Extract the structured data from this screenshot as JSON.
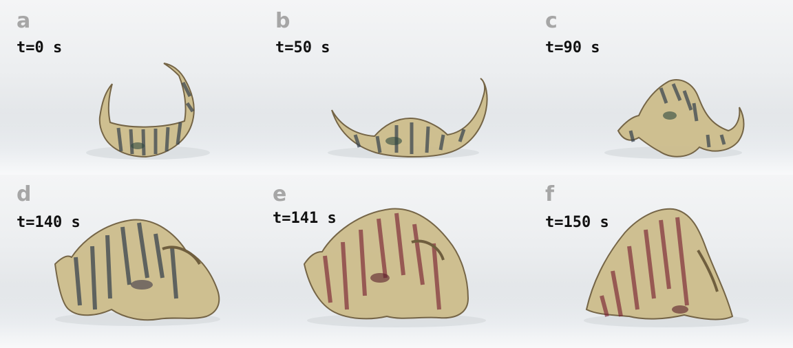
{
  "panels": [
    {
      "letter": "a",
      "time": "t=0 s"
    },
    {
      "letter": "b",
      "time": "t=50 s"
    },
    {
      "letter": "c",
      "time": "t=90 s"
    },
    {
      "letter": "d",
      "time": "t=140 s"
    },
    {
      "letter": "e",
      "time": "t=141 s"
    },
    {
      "letter": "f",
      "time": "t=150 s"
    }
  ],
  "colors": {
    "film": "#c9b98a",
    "film_edge": "#6f5e3e",
    "stripe_dark": "#2f3b4a",
    "stripe_red": "#7a2434",
    "label_letter": "#a6a6a6",
    "label_time": "#111111"
  }
}
